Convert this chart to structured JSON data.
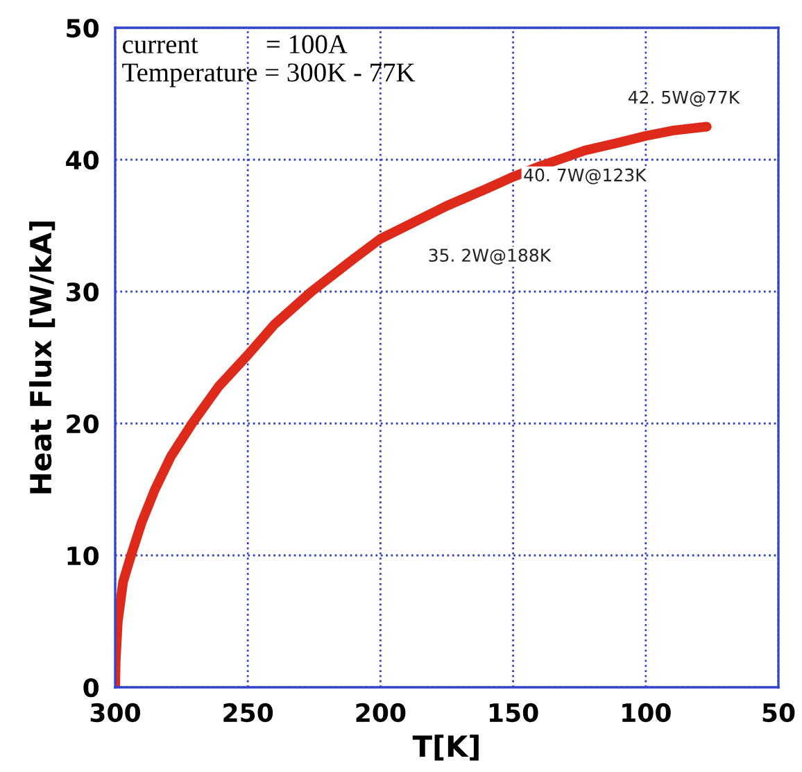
{
  "chart_data": {
    "type": "line",
    "xlabel": "T[K]",
    "ylabel": "Heat Flux [W/kA]",
    "x": [
      300,
      299.8,
      299,
      297,
      294,
      290,
      285,
      279,
      271,
      261,
      250,
      240,
      226,
      210,
      200,
      188,
      175,
      160,
      150,
      140,
      130,
      123,
      110,
      100,
      90,
      77
    ],
    "series": [
      {
        "color": "#dd2a1b",
        "values": [
          0,
          2,
          5,
          8,
          10,
          12.5,
          15,
          17.5,
          20,
          22.8,
          25.2,
          27.5,
          30,
          32.5,
          34,
          35.2,
          36.5,
          37.8,
          38.7,
          39.5,
          40.2,
          40.7,
          41.3,
          41.8,
          42.2,
          42.5
        ]
      }
    ],
    "xlim": [
      300,
      50
    ],
    "xticks": [
      300,
      250,
      200,
      150,
      100,
      50
    ],
    "ylim": [
      0,
      50
    ],
    "yticks": [
      0,
      10,
      20,
      30,
      40,
      50
    ],
    "grid": true,
    "line_style": "solid",
    "annotations": [
      "current          = 100A\nTemperature = 300K - 77K",
      {
        "text": "35. 2W@188K",
        "x": 188,
        "y": 35.2
      },
      {
        "text": "40. 7W@123K",
        "x": 123,
        "y": 40.7
      },
      {
        "text": "42. 5W@77K",
        "x": 77,
        "y": 42.5
      }
    ]
  }
}
